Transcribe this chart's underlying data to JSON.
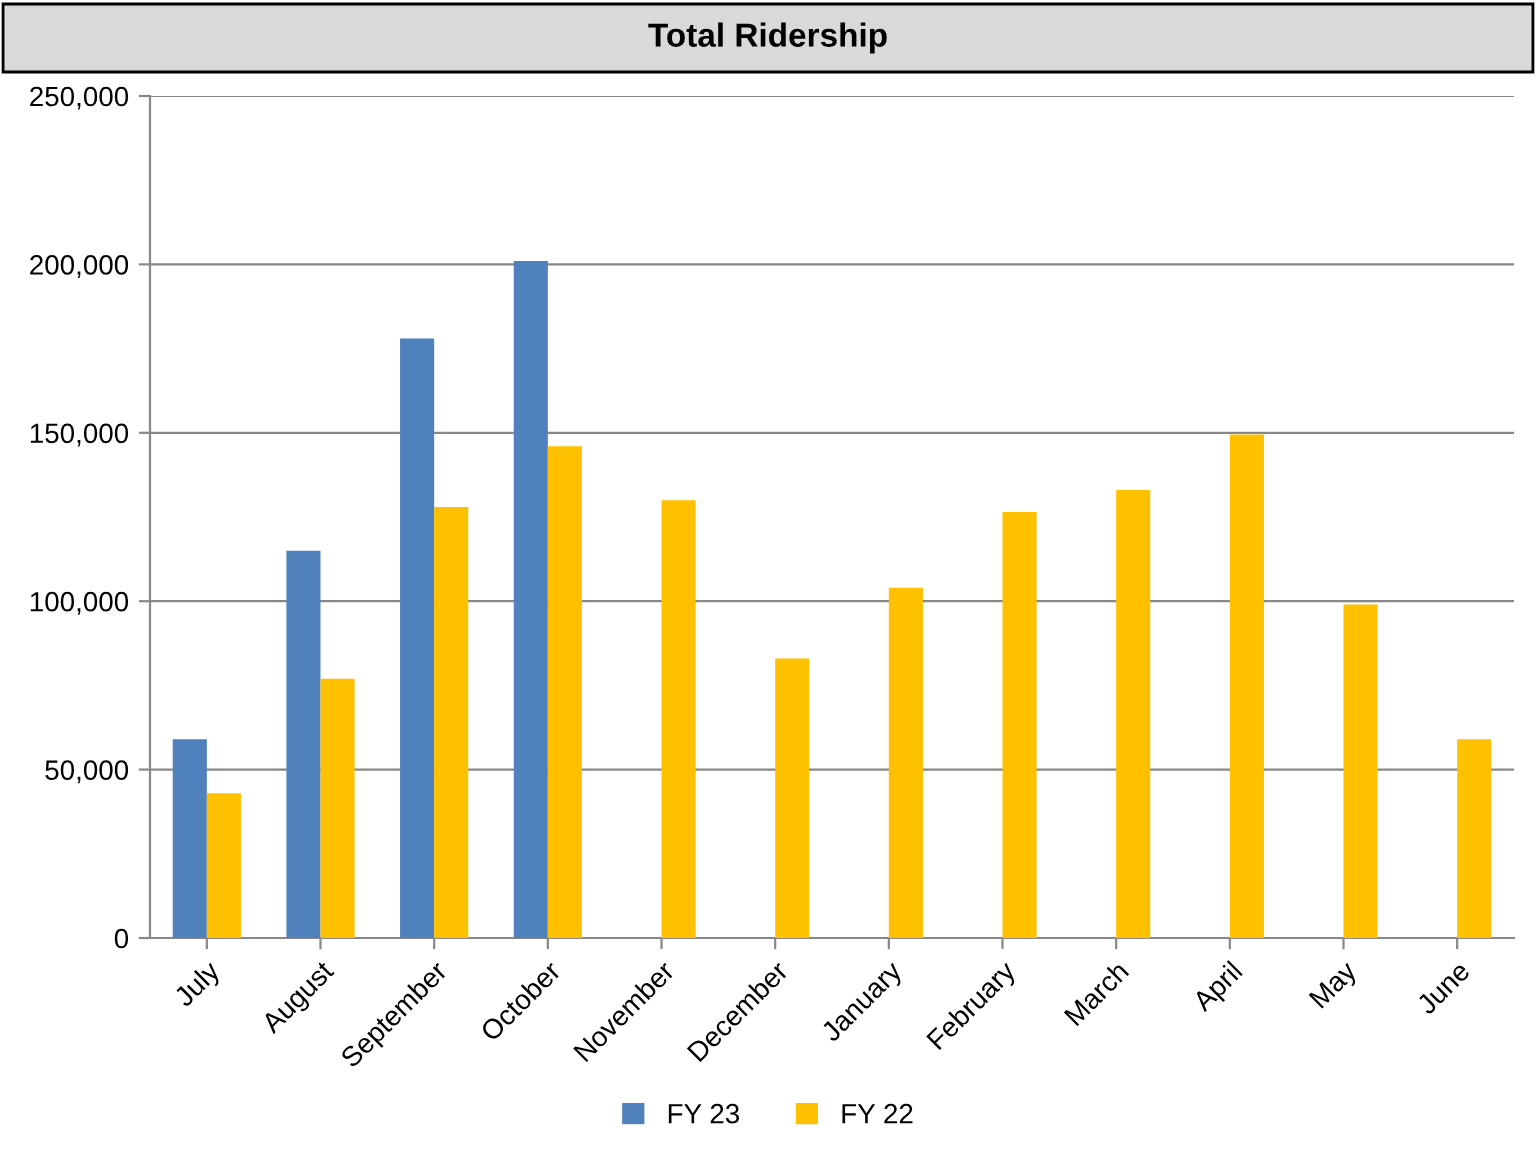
{
  "chart_data": {
    "type": "bar",
    "title": "Total Ridership",
    "categories": [
      "July",
      "August",
      "September",
      "October",
      "November",
      "December",
      "January",
      "February",
      "March",
      "April",
      "May",
      "June"
    ],
    "series": [
      {
        "name": "FY 23",
        "color": "#4f81bd",
        "values": [
          59000,
          115000,
          178000,
          201000,
          null,
          null,
          null,
          null,
          null,
          null,
          null,
          null
        ]
      },
      {
        "name": "FY 22",
        "color": "#ffc000",
        "values": [
          43000,
          77000,
          128000,
          146000,
          130000,
          83000,
          104000,
          126500,
          133000,
          149500,
          99000,
          59000
        ]
      }
    ],
    "ylim": [
      0,
      250000
    ],
    "yticks": [
      {
        "value": 0,
        "label": "0"
      },
      {
        "value": 50000,
        "label": "50,000"
      },
      {
        "value": 100000,
        "label": "100,000"
      },
      {
        "value": 150000,
        "label": "150,000"
      },
      {
        "value": 200000,
        "label": "200,000"
      },
      {
        "value": 250000,
        "label": "250,000"
      }
    ],
    "grid": "y",
    "legend": "bottom"
  }
}
